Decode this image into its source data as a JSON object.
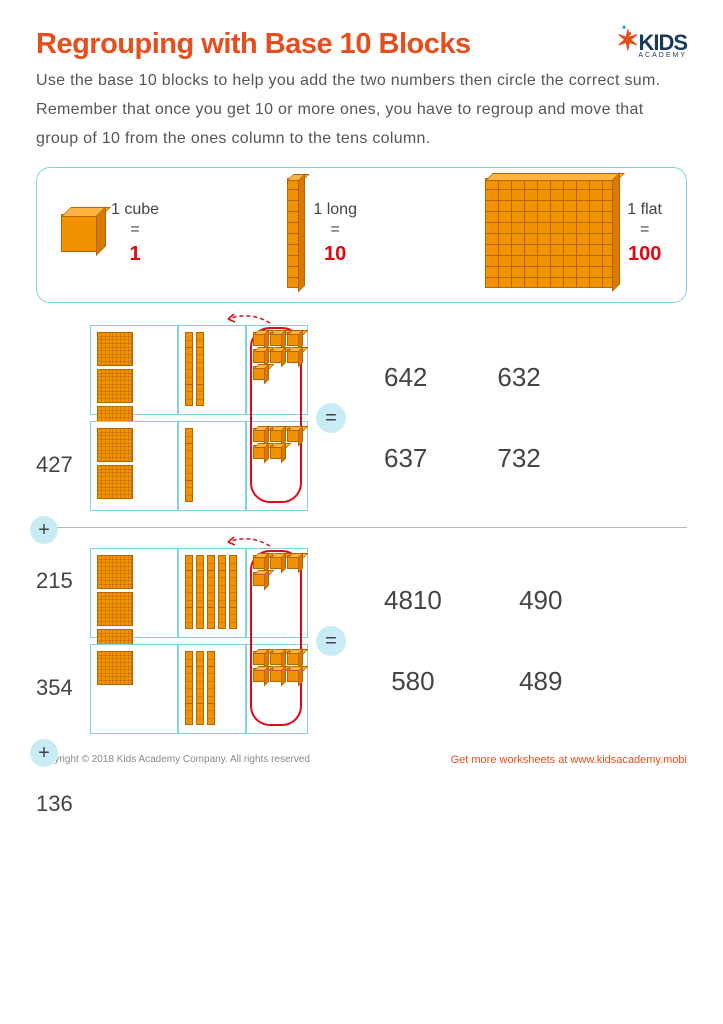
{
  "title": "Regrouping with Base 10 Blocks",
  "logo": {
    "text": "KIDS",
    "sub": "ACADEMY"
  },
  "instructions": "Use the base 10 blocks to help you add the two numbers then circle the correct sum. Remember that once you get 10 or more ones, you have to regroup and move that group of 10 from the ones column to the tens column.",
  "legend": {
    "cube": {
      "label": "1 cube",
      "eq": "=",
      "value": "1"
    },
    "long": {
      "label": "1 long",
      "eq": "=",
      "value": "10"
    },
    "flat": {
      "label": "1 flat",
      "eq": "=",
      "value": "100"
    }
  },
  "problems": [
    {
      "addend1": {
        "number": "427",
        "hundreds": 4,
        "tens": 2,
        "ones": 7
      },
      "addend2": {
        "number": "215",
        "hundreds": 2,
        "tens": 1,
        "ones": 5
      },
      "answers": [
        "642",
        "632",
        "637",
        "732"
      ]
    },
    {
      "addend1": {
        "number": "354",
        "hundreds": 3,
        "tens": 5,
        "ones": 4
      },
      "addend2": {
        "number": "136",
        "hundreds": 1,
        "tens": 3,
        "ones": 6
      },
      "answers": [
        "4810",
        "490",
        "580",
        "489"
      ]
    }
  ],
  "footer": {
    "copyright": "Copyright © 2018 Kids Academy Company. All rights reserved",
    "link": "Get more worksheets at www.kidsacademy.mobi"
  },
  "colors": {
    "title": "#e84e1b",
    "accent_red": "#e30613",
    "block_orange": "#f39200",
    "border_teal": "#7dd3e0",
    "circle_bg": "#c8ecf4"
  }
}
